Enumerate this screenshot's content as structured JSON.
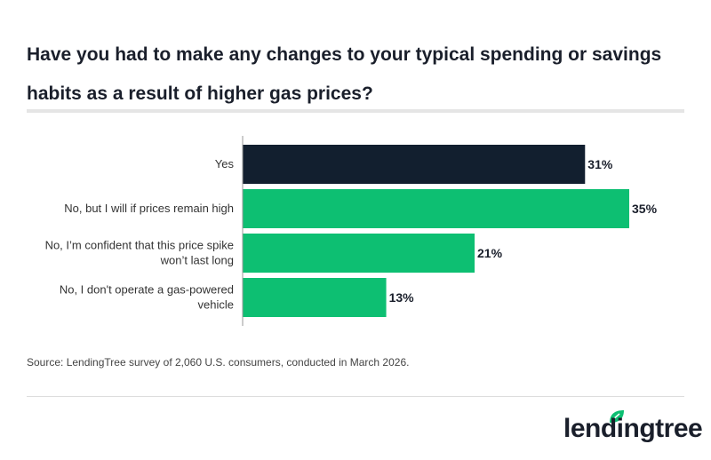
{
  "chart_data": {
    "type": "bar",
    "orientation": "horizontal",
    "title": "Have you had to make any changes to your typical spending or savings habits as a result of higher gas prices?",
    "categories": [
      "Yes",
      "No, but I will if prices remain high",
      "No, I’m confident that this price spike won’t last long",
      "No, I don't operate a gas-powered vehicle"
    ],
    "label_lines": [
      [
        "Yes"
      ],
      [
        "No, but I will if prices remain high"
      ],
      [
        "No, I’m confident that this price spike",
        "won’t last long"
      ],
      [
        "No, I don't operate a gas-powered",
        "vehicle"
      ]
    ],
    "values": [
      31,
      35,
      21,
      13
    ],
    "value_labels": [
      "31%",
      "35%",
      "21%",
      "13%"
    ],
    "colors": [
      "#121f2f",
      "#0dbf72",
      "#0dbf72",
      "#0dbf72"
    ],
    "xlim": [
      0,
      35
    ],
    "grid": false
  },
  "source": "Source: LendingTree survey of 2,060 U.S. consumers, conducted in March 2026.",
  "logo": {
    "text": "lendingtree",
    "color": "#1a1f2b",
    "leaf_color": "#0dbf72"
  }
}
